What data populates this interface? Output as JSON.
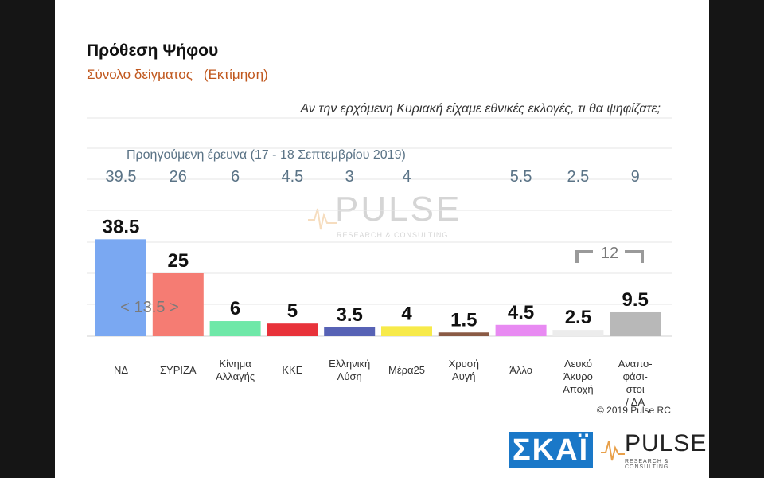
{
  "header": {
    "title": "Πρόθεση Ψήφου",
    "subtitle": "Σύνολο δείγματος",
    "subtitle_note": "(Εκτίμηση)",
    "question": "Αν την ερχόμενη Κυριακή είχαμε εθνικές εκλογές, τι θα ψηφίζατε;",
    "previous_survey_label": "Προηγούμενη έρευνα  (17 - 18  Σεπτεμβρίου  2019)"
  },
  "chart_data": {
    "type": "bar",
    "categories": [
      [
        "ΝΔ"
      ],
      [
        "ΣΥΡΙΖΑ"
      ],
      [
        "Κίνημα",
        "Αλλαγής"
      ],
      [
        "ΚΚΕ"
      ],
      [
        "Ελληνική",
        "Λύση"
      ],
      [
        "Μέρα25"
      ],
      [
        "Χρυσή",
        "Αυγή"
      ],
      [
        "Άλλο"
      ],
      [
        "Λευκό",
        "Άκυρο",
        "Αποχή"
      ],
      [
        "Αναπο-",
        "φάσι-",
        "στοι",
        "/ ΔΑ"
      ]
    ],
    "values": [
      38.5,
      25,
      6,
      5,
      3.5,
      4,
      1.5,
      4.5,
      2.5,
      9.5
    ],
    "value_labels": [
      "38.5",
      "25",
      "6",
      "5",
      "3.5",
      "4",
      "1.5",
      "4.5",
      "2.5",
      "9.5"
    ],
    "previous_values": [
      "39.5",
      "26",
      "6",
      "4.5",
      "3",
      "4",
      "",
      "5.5",
      "2.5",
      "9"
    ],
    "colors": [
      "#7aa8f2",
      "#f57c73",
      "#6fe8a8",
      "#e8323a",
      "#5762b5",
      "#f7ea4a",
      "#8a5a44",
      "#e88af2",
      "#ececec",
      "#b8b8b8"
    ],
    "ylim": [
      0,
      42
    ],
    "annotations": {
      "gap_label": "< 13.5 >",
      "bracket_label": "12"
    },
    "grid": true
  },
  "footer": {
    "copyright": "© 2019 Pulse RC",
    "skai_logo": "ΣΚΑΪ",
    "pulse_logo": "PULSE",
    "pulse_tagline": "RESEARCH & CONSULTING"
  },
  "watermark": {
    "text": "PULSE",
    "tagline": "RESEARCH & CONSULTING"
  }
}
